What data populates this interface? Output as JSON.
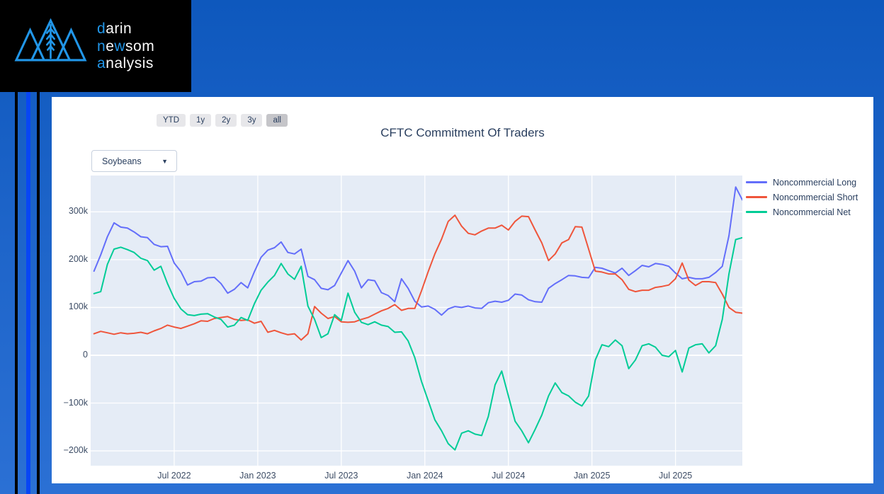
{
  "page": {
    "bg_color_top": "#0e58bd",
    "bg_color_bottom": "#2b70d4",
    "stripe_black": "#000000",
    "stripe_blue": "#0846f4"
  },
  "logo": {
    "box_color": "#000000",
    "accent_color": "#2196e8",
    "text_color": "#fafafa",
    "mark": "mountains-wheat-icon",
    "lines": [
      {
        "parts": [
          {
            "text": "d",
            "accent": true
          },
          {
            "text": "arin",
            "accent": false
          }
        ]
      },
      {
        "parts": [
          {
            "text": "n",
            "accent": true
          },
          {
            "text": "e",
            "accent": false
          },
          {
            "text": "w",
            "accent": true
          },
          {
            "text": "som",
            "accent": false
          }
        ]
      },
      {
        "parts": [
          {
            "text": "a",
            "accent": true
          },
          {
            "text": "nalysis",
            "accent": false
          }
        ]
      }
    ]
  },
  "card": {
    "range_buttons": [
      {
        "label": "YTD",
        "active": false
      },
      {
        "label": "1y",
        "active": false
      },
      {
        "label": "2y",
        "active": false
      },
      {
        "label": "3y",
        "active": false
      },
      {
        "label": "all",
        "active": true
      }
    ],
    "title": "CFTC Commitment Of Traders",
    "dropdown": {
      "value": "Soybeans",
      "caret": "▼"
    }
  },
  "chart_data": {
    "type": "line",
    "title": "CFTC Commitment Of Traders",
    "x_unit": "decimal_year",
    "x_range": [
      2022.0,
      2025.9
    ],
    "y_range": [
      -231,
      376
    ],
    "grid": true,
    "plot_bg": "#e5ecf6",
    "grid_color": "#ffffff",
    "legend_position": "right-top",
    "y_ticks": [
      {
        "label": "300k",
        "value": 300
      },
      {
        "label": "200k",
        "value": 200
      },
      {
        "label": "100k",
        "value": 100
      },
      {
        "label": "0",
        "value": 0
      },
      {
        "label": "−100k",
        "value": -100
      },
      {
        "label": "−200k",
        "value": -200
      }
    ],
    "x_ticks": [
      {
        "label": "Jul 2022",
        "x": 2022.5
      },
      {
        "label": "Jan 2023",
        "x": 2023.0
      },
      {
        "label": "Jul 2023",
        "x": 2023.5
      },
      {
        "label": "Jan 2024",
        "x": 2024.0
      },
      {
        "label": "Jul 2024",
        "x": 2024.5
      },
      {
        "label": "Jan 2025",
        "x": 2025.0
      },
      {
        "label": "Jul 2025",
        "x": 2025.5
      }
    ],
    "x": [
      2022.02,
      2022.06,
      2022.1,
      2022.14,
      2022.18,
      2022.22,
      2022.26,
      2022.3,
      2022.34,
      2022.38,
      2022.42,
      2022.46,
      2022.5,
      2022.54,
      2022.58,
      2022.62,
      2022.66,
      2022.7,
      2022.74,
      2022.78,
      2022.82,
      2022.86,
      2022.9,
      2022.94,
      2022.98,
      2023.02,
      2023.06,
      2023.1,
      2023.14,
      2023.18,
      2023.22,
      2023.26,
      2023.3,
      2023.34,
      2023.38,
      2023.42,
      2023.46,
      2023.5,
      2023.54,
      2023.58,
      2023.62,
      2023.66,
      2023.7,
      2023.74,
      2023.78,
      2023.82,
      2023.86,
      2023.9,
      2023.94,
      2023.98,
      2024.02,
      2024.06,
      2024.1,
      2024.14,
      2024.18,
      2024.22,
      2024.26,
      2024.3,
      2024.34,
      2024.38,
      2024.42,
      2024.46,
      2024.5,
      2024.54,
      2024.58,
      2024.62,
      2024.66,
      2024.7,
      2024.74,
      2024.78,
      2024.82,
      2024.86,
      2024.9,
      2024.94,
      2024.98,
      2025.02,
      2025.06,
      2025.1,
      2025.14,
      2025.18,
      2025.22,
      2025.26,
      2025.3,
      2025.34,
      2025.38,
      2025.42,
      2025.46,
      2025.5,
      2025.54,
      2025.58,
      2025.62,
      2025.66,
      2025.7,
      2025.74,
      2025.78,
      2025.82,
      2025.86,
      2025.9
    ],
    "series": [
      {
        "name": "Noncommercial Long",
        "color": "#636efa",
        "values": [
          176,
          210,
          248,
          277,
          268,
          266,
          258,
          248,
          246,
          232,
          227,
          228,
          193,
          175,
          147,
          154,
          155,
          162,
          163,
          150,
          130,
          138,
          152,
          141,
          175,
          205,
          220,
          225,
          237,
          215,
          212,
          222,
          165,
          158,
          140,
          137,
          146,
          172,
          198,
          176,
          141,
          158,
          156,
          131,
          125,
          112,
          160,
          140,
          113,
          101,
          103,
          96,
          84,
          97,
          102,
          100,
          103,
          99,
          98,
          110,
          113,
          111,
          115,
          128,
          126,
          116,
          112,
          111,
          140,
          150,
          158,
          167,
          166,
          163,
          162,
          184,
          182,
          177,
          172,
          182,
          167,
          177,
          188,
          185,
          192,
          190,
          186,
          172,
          160,
          163,
          160,
          160,
          163,
          173,
          186,
          250,
          352,
          325
        ]
      },
      {
        "name": "Noncommercial Short",
        "color": "#ef553b",
        "values": [
          45,
          50,
          47,
          44,
          47,
          45,
          46,
          48,
          45,
          51,
          56,
          63,
          59,
          56,
          61,
          66,
          72,
          71,
          77,
          79,
          81,
          75,
          73,
          74,
          67,
          71,
          48,
          52,
          47,
          43,
          45,
          32,
          45,
          102,
          88,
          77,
          81,
          70,
          69,
          70,
          75,
          79,
          86,
          93,
          98,
          106,
          94,
          98,
          98,
          135,
          175,
          212,
          243,
          280,
          293,
          270,
          255,
          252,
          260,
          266,
          266,
          272,
          262,
          280,
          291,
          290,
          262,
          235,
          198,
          212,
          235,
          242,
          269,
          268,
          222,
          176,
          174,
          170,
          170,
          158,
          138,
          133,
          136,
          136,
          142,
          144,
          147,
          160,
          193,
          157,
          146,
          154,
          154,
          152,
          128,
          100,
          90,
          88
        ]
      },
      {
        "name": "Noncommercial Net",
        "color": "#00cc96",
        "values": [
          129,
          133,
          190,
          222,
          226,
          221,
          215,
          203,
          198,
          178,
          186,
          150,
          119,
          97,
          85,
          83,
          86,
          87,
          80,
          75,
          59,
          63,
          79,
          73,
          108,
          136,
          153,
          167,
          192,
          170,
          159,
          186,
          103,
          75,
          37,
          45,
          85,
          73,
          130,
          90,
          69,
          64,
          70,
          63,
          60,
          48,
          49,
          30,
          -5,
          -55,
          -95,
          -135,
          -158,
          -185,
          -198,
          -163,
          -158,
          -165,
          -168,
          -128,
          -62,
          -33,
          -85,
          -138,
          -158,
          -183,
          -155,
          -125,
          -85,
          -58,
          -78,
          -85,
          -98,
          -106,
          -85,
          -10,
          22,
          18,
          32,
          20,
          -28,
          -10,
          20,
          24,
          17,
          0,
          -3,
          10,
          -35,
          15,
          22,
          24,
          5,
          20,
          75,
          170,
          242,
          246
        ]
      }
    ]
  }
}
